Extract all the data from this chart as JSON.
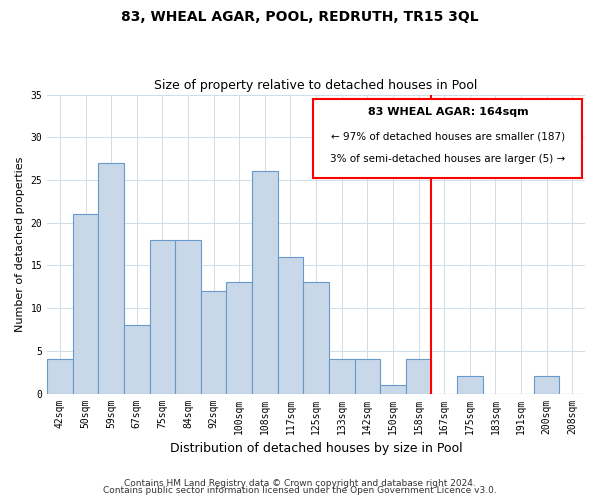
{
  "title": "83, WHEAL AGAR, POOL, REDRUTH, TR15 3QL",
  "subtitle": "Size of property relative to detached houses in Pool",
  "xlabel": "Distribution of detached houses by size in Pool",
  "ylabel": "Number of detached properties",
  "footer_line1": "Contains HM Land Registry data © Crown copyright and database right 2024.",
  "footer_line2": "Contains public sector information licensed under the Open Government Licence v3.0.",
  "bin_labels": [
    "42sqm",
    "50sqm",
    "59sqm",
    "67sqm",
    "75sqm",
    "84sqm",
    "92sqm",
    "100sqm",
    "108sqm",
    "117sqm",
    "125sqm",
    "133sqm",
    "142sqm",
    "150sqm",
    "158sqm",
    "167sqm",
    "175sqm",
    "183sqm",
    "191sqm",
    "200sqm",
    "208sqm"
  ],
  "bar_heights": [
    4,
    21,
    27,
    8,
    18,
    18,
    12,
    13,
    26,
    16,
    13,
    4,
    4,
    1,
    4,
    0,
    2,
    0,
    0,
    2,
    0
  ],
  "bar_color": "#c8d8e8",
  "bar_edge_color": "#6699cc",
  "vline_color": "red",
  "ylim": [
    0,
    35
  ],
  "yticks": [
    0,
    5,
    10,
    15,
    20,
    25,
    30,
    35
  ],
  "annotation_title": "83 WHEAL AGAR: 164sqm",
  "annotation_line1": "← 97% of detached houses are smaller (187)",
  "annotation_line2": "3% of semi-detached houses are larger (5) →",
  "title_fontsize": 10,
  "subtitle_fontsize": 9,
  "ylabel_fontsize": 8,
  "xlabel_fontsize": 9,
  "tick_fontsize": 7,
  "footer_fontsize": 6.5,
  "ann_fontsize_title": 8,
  "ann_fontsize_body": 7.5
}
